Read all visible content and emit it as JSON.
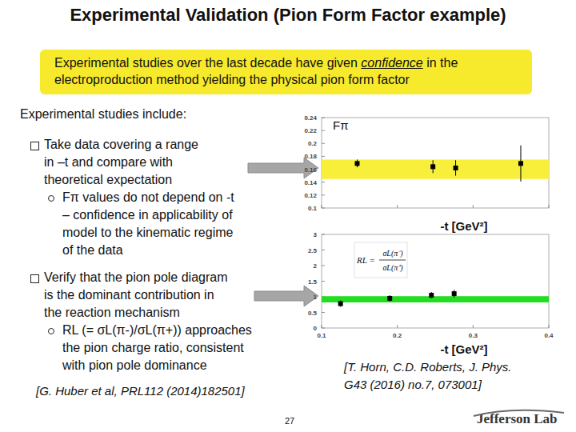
{
  "slide": {
    "title": "Experimental Validation (Pion Form Factor example)",
    "callout": {
      "before": "Experimental studies over the last decade have given ",
      "emphasis": "confidence",
      "after": " in the electroproduction method yielding the physical pion form factor"
    },
    "intro": "Experimental studies include:",
    "bullets": [
      {
        "lines": [
          "Take data covering a range",
          "in –t and compare with",
          "theoretical expectation"
        ],
        "sub": [
          "Fπ values do not depend on -t",
          "– confidence in applicability of",
          "model to the kinematic regime",
          "of the data"
        ]
      },
      {
        "lines": [
          "Verify that the pion pole diagram",
          "is the dominant contribution in",
          "the reaction mechanism"
        ],
        "sub": [
          "RL (= σL(π-)/σL(π+)) approaches",
          "the pion charge ratio, consistent",
          "with pion pole dominance"
        ]
      }
    ],
    "left_reference": "[G. Huber et al, PRL112 (2014)182501]",
    "right_reference": [
      "[T. Horn, C.D. Roberts, J. Phys.",
      "G43 (2016) no.7, 073001]"
    ],
    "page_number": "27",
    "logo": "Jefferson Lab"
  },
  "chart_data": [
    {
      "type": "scatter",
      "title": "Fπ",
      "x_label": "-t [GeV²]",
      "x": [
        0.147,
        0.247,
        0.277,
        0.363
      ],
      "values": [
        0.169,
        0.164,
        0.162,
        0.169
      ],
      "errors": [
        0.006,
        0.01,
        0.012,
        0.028
      ],
      "color": "#000000",
      "marker": "square",
      "band": {
        "range": [
          0.145,
          0.175
        ],
        "color": "#f7ef3a"
      },
      "xlim": [
        0.1,
        0.4
      ],
      "ylim": [
        0.1,
        0.24
      ],
      "xticks": [
        0.1,
        0.2,
        0.3,
        0.4
      ],
      "yticks": [
        0.1,
        0.12,
        0.14,
        0.16,
        0.18,
        0.2,
        0.22,
        0.24
      ],
      "tick_labels": "y",
      "grid": false
    },
    {
      "type": "scatter",
      "x_label": "-t [GeV²]",
      "annotations": [
        "RL =",
        "σL(π⁻)",
        "σL(π⁺)"
      ],
      "x": [
        0.125,
        0.19,
        0.245,
        0.275
      ],
      "values": [
        0.78,
        0.95,
        1.05,
        1.1
      ],
      "errors": [
        0.1,
        0.1,
        0.1,
        0.12
      ],
      "color": "#000000",
      "marker": "square",
      "band": {
        "range": [
          0.82,
          1.02
        ],
        "color": "#22dd22"
      },
      "xlim": [
        0.1,
        0.4
      ],
      "ylim": [
        0,
        3
      ],
      "xticks": [
        0.1,
        0.2,
        0.3,
        0.4
      ],
      "yticks": [
        0,
        0.5,
        1,
        1.5,
        2,
        2.5,
        3
      ],
      "grid": false
    }
  ]
}
